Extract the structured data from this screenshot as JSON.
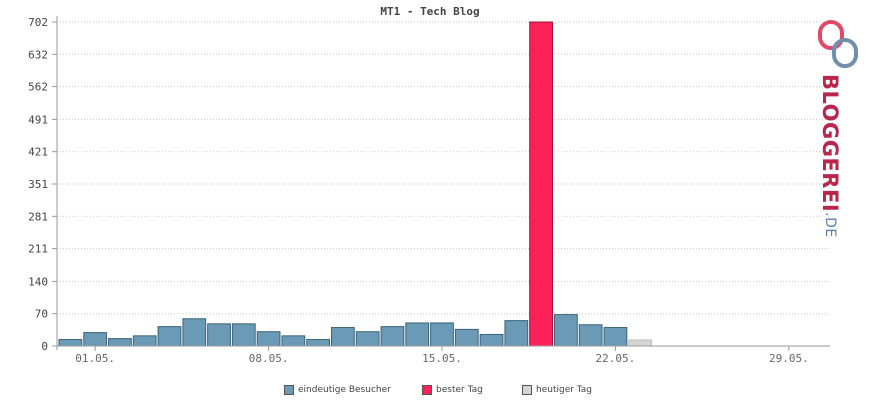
{
  "chart_data": {
    "type": "bar",
    "title": "MT1 - Tech Blog",
    "y_ticks": [
      "702",
      "632",
      "562",
      "491",
      "421",
      "351",
      "281",
      "211",
      "140",
      "70",
      "0"
    ],
    "ylim": [
      0,
      702
    ],
    "x_tick_labels": [
      "01.05.",
      "08.05.",
      "15.05.",
      "22.05.",
      "29.05."
    ],
    "days": 31,
    "values": [
      14,
      29,
      16,
      22,
      42,
      59,
      48,
      48,
      31,
      22,
      14,
      40,
      31,
      42,
      50,
      50,
      36,
      25,
      55,
      702,
      68,
      46,
      40,
      13,
      0,
      0,
      0,
      0,
      0,
      0,
      0
    ],
    "best_day_index": 19,
    "today_index": 23,
    "grid": true,
    "colors": {
      "visitors": "#6a9ab5",
      "best_day": "#ff2159",
      "today": "#d4d4d4",
      "bar_stroke": "#3b6279",
      "grid": "#c8c8c8",
      "axis": "#999999"
    },
    "legend": [
      {
        "label": "eindeutige Besucher",
        "color": "#6a9ab5"
      },
      {
        "label": "bester Tag",
        "color": "#ff2159"
      },
      {
        "label": "heutiger Tag",
        "color": "#d4d4d4"
      }
    ]
  },
  "logo": {
    "name": "BLOGGEREI",
    "tld": ".DE"
  }
}
